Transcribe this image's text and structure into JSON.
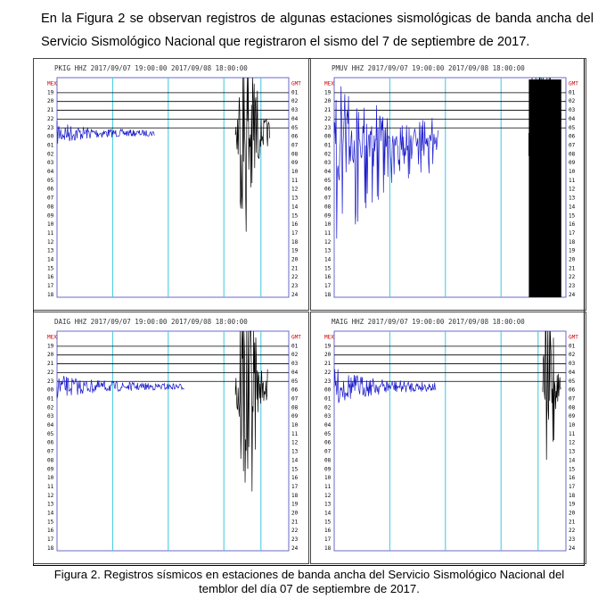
{
  "intro": "En la Figura 2  se observan registros de algunas estaciones sismológicas de banda ancha del Servicio Sismológico Nacional que registraron el sismo del 7 de septiembre de 2017.",
  "panels": [
    {
      "header": "PKIG HHZ 2017/09/07 19:00:00 2017/09/08 18:00:00",
      "left_labels": [
        "MEX",
        "19",
        "20",
        "21",
        "22",
        "23",
        "00",
        "01",
        "02",
        "03",
        "04",
        "05",
        "06",
        "07",
        "08",
        "09",
        "10",
        "11",
        "12",
        "13",
        "14",
        "15",
        "16",
        "17",
        "18"
      ],
      "right_labels": [
        "GMT",
        "01",
        "02",
        "03",
        "04",
        "05",
        "06",
        "07",
        "08",
        "09",
        "10",
        "11",
        "12",
        "13",
        "14",
        "15",
        "16",
        "17",
        "18",
        "19",
        "20",
        "21",
        "22",
        "23",
        "24"
      ]
    },
    {
      "header": "PMUV HHZ 2017/09/07 19:00:00 2017/09/08 18:00:00",
      "left_labels": [
        "MEX",
        "19",
        "20",
        "21",
        "22",
        "23",
        "00",
        "01",
        "02",
        "03",
        "04",
        "05",
        "06",
        "07",
        "08",
        "09",
        "10",
        "11",
        "12",
        "13",
        "14",
        "15",
        "16",
        "17",
        "18"
      ],
      "right_labels": [
        "GMT",
        "01",
        "02",
        "03",
        "04",
        "05",
        "06",
        "07",
        "08",
        "09",
        "10",
        "11",
        "12",
        "13",
        "14",
        "15",
        "16",
        "17",
        "18",
        "19",
        "20",
        "21",
        "22",
        "23",
        "24"
      ]
    },
    {
      "header": "DAIG HHZ 2017/09/07 19:00:00 2017/09/08 18:00:00",
      "left_labels": [
        "MEX",
        "19",
        "20",
        "21",
        "22",
        "23",
        "00",
        "01",
        "02",
        "03",
        "04",
        "05",
        "06",
        "07",
        "08",
        "09",
        "10",
        "11",
        "12",
        "13",
        "14",
        "15",
        "16",
        "17",
        "18"
      ],
      "right_labels": [
        "GMT",
        "01",
        "02",
        "03",
        "04",
        "05",
        "06",
        "07",
        "08",
        "09",
        "10",
        "11",
        "12",
        "13",
        "14",
        "15",
        "16",
        "17",
        "18",
        "19",
        "20",
        "21",
        "22",
        "23",
        "24"
      ]
    },
    {
      "header": "MAIG HHZ 2017/09/07 19:00:00 2017/09/08 18:00:00",
      "left_labels": [
        "MEX",
        "19",
        "20",
        "21",
        "22",
        "23",
        "00",
        "01",
        "02",
        "03",
        "04",
        "05",
        "06",
        "07",
        "08",
        "09",
        "10",
        "11",
        "12",
        "13",
        "14",
        "15",
        "16",
        "17",
        "18"
      ],
      "right_labels": [
        "GMT",
        "01",
        "02",
        "03",
        "04",
        "05",
        "06",
        "07",
        "08",
        "09",
        "10",
        "11",
        "12",
        "13",
        "14",
        "15",
        "16",
        "17",
        "18",
        "19",
        "20",
        "21",
        "22",
        "23",
        "24"
      ]
    }
  ],
  "caption": "Figura 2. Registros sísmicos en estaciones de banda ancha del Servicio Sismológico Nacional del temblor del día 07 de septiembre de 2017."
}
